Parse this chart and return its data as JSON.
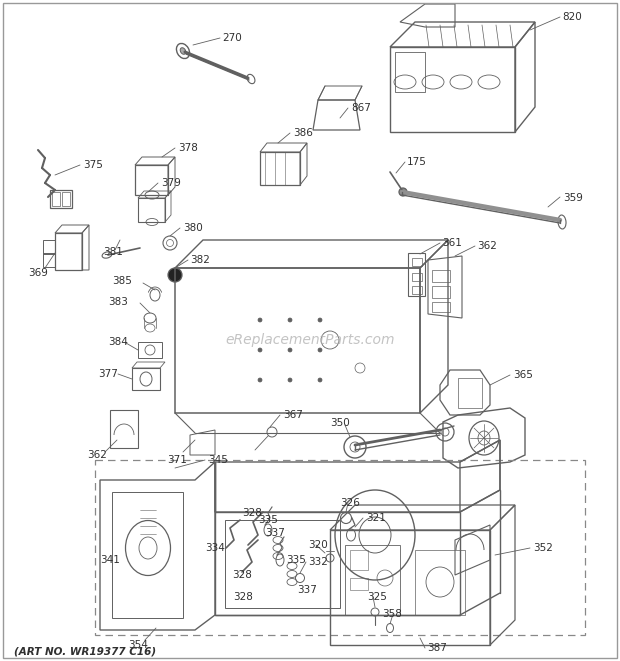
{
  "watermark": "eReplacementParts.com",
  "art_no": "(ART NO. WR19377 C16)",
  "bg": "#ffffff",
  "lc": "#606060",
  "tc": "#303030",
  "wc": "#b0b0b0",
  "fig_w": 6.2,
  "fig_h": 6.61,
  "dpi": 100,
  "border_color": "#aaaaaa"
}
